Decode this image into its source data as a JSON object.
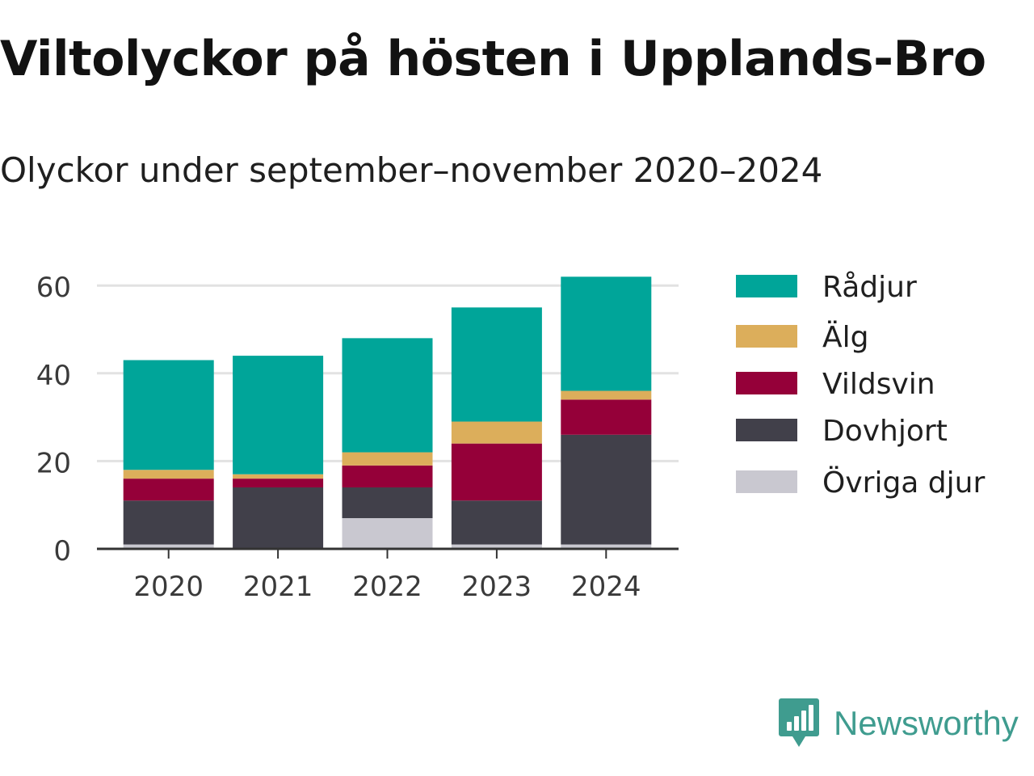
{
  "title": "Viltolyckor på hösten i Upplands-Bro",
  "subtitle": "Olyckor under september–november 2020–2024",
  "chart_data": {
    "type": "bar",
    "stacked": true,
    "categories": [
      "2020",
      "2021",
      "2022",
      "2023",
      "2024"
    ],
    "series": [
      {
        "name": "Övriga djur",
        "color": "#c9c8d0",
        "values": [
          1,
          0,
          7,
          1,
          1
        ]
      },
      {
        "name": "Dovhjort",
        "color": "#41404a",
        "values": [
          10,
          14,
          7,
          10,
          25
        ]
      },
      {
        "name": "Vildsvin",
        "color": "#950039",
        "values": [
          5,
          2,
          5,
          13,
          8
        ]
      },
      {
        "name": "Älg",
        "color": "#dcae5b",
        "values": [
          2,
          1,
          3,
          5,
          2
        ]
      },
      {
        "name": "Rådjur",
        "color": "#00a599",
        "values": [
          25,
          27,
          26,
          26,
          26
        ]
      }
    ],
    "legend_order": [
      "Rådjur",
      "Älg",
      "Vildsvin",
      "Dovhjort",
      "Övriga djur"
    ],
    "yticks": [
      0,
      20,
      40,
      60
    ],
    "ylim": [
      0,
      60
    ],
    "legend_position": "right",
    "grid": true
  },
  "brand": {
    "name": "Newsworthy",
    "color": "#3f9c8f"
  }
}
